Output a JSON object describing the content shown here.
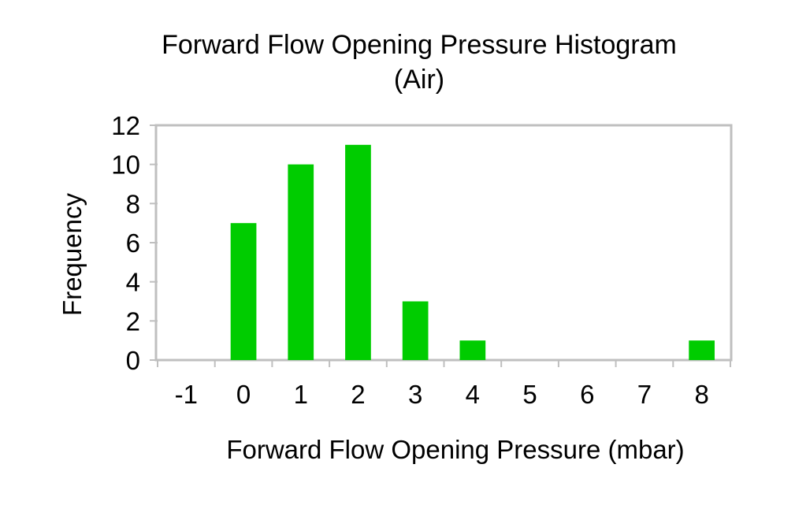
{
  "chart_data": {
    "type": "bar",
    "title": "Forward Flow Opening Pressure Histogram",
    "subtitle": "(Air)",
    "xlabel": "Forward Flow Opening Pressure (mbar)",
    "ylabel": "Frequency",
    "categories": [
      "-1",
      "0",
      "1",
      "2",
      "3",
      "4",
      "5",
      "6",
      "7",
      "8"
    ],
    "values": [
      0,
      7,
      10,
      11,
      3,
      1,
      0,
      0,
      0,
      1
    ],
    "ylim": [
      0,
      12
    ],
    "yticks": [
      "0",
      "2",
      "4",
      "6",
      "8",
      "10",
      "12"
    ],
    "grid": false,
    "legend": "none",
    "bar_color": "#00cc00",
    "frame_color": "#bfbfbf"
  }
}
